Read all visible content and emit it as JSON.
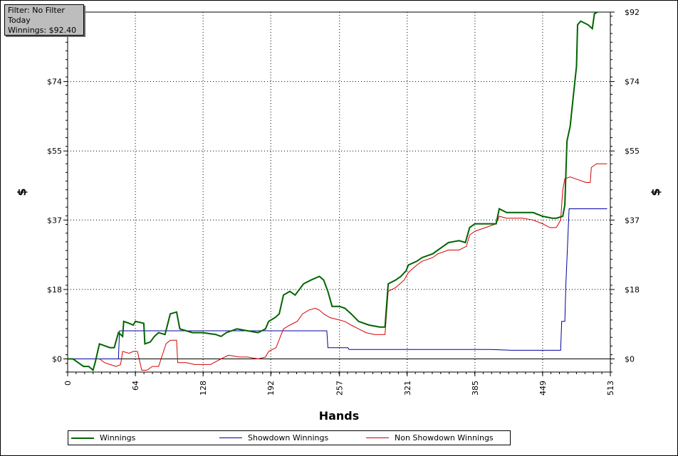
{
  "info_box": {
    "filter": "Filter: No Filter",
    "period": "Today",
    "winnings": "Winnings: $92.40"
  },
  "legend": [
    {
      "label": "Winnings",
      "color": "#006400"
    },
    {
      "label": "Showdown Winnings",
      "color": "#0000a0"
    },
    {
      "label": "Non Showdown Winnings",
      "color": "#d40000"
    }
  ],
  "chart_data": {
    "type": "line",
    "xlabel": "Hands",
    "ylabel": "$",
    "xlim": [
      0,
      513
    ],
    "ylim": [
      -3.5,
      92.4
    ],
    "x_ticks": [
      "0",
      "64",
      "128",
      "192",
      "257",
      "321",
      "385",
      "449",
      "513"
    ],
    "y_ticks": [
      "$0",
      "$18",
      "$37",
      "$55",
      "$74",
      "$92"
    ],
    "y_tick_values": [
      0,
      18.5,
      37,
      55.4,
      73.9,
      92.4
    ],
    "grid": "dotted",
    "series": [
      {
        "name": "Winnings",
        "color": "#006400",
        "points": [
          [
            0,
            0
          ],
          [
            5,
            0
          ],
          [
            10,
            -1
          ],
          [
            15,
            -2
          ],
          [
            20,
            -2
          ],
          [
            24,
            -3
          ],
          [
            26,
            -1
          ],
          [
            30,
            4
          ],
          [
            35,
            3.5
          ],
          [
            40,
            3
          ],
          [
            44,
            3
          ],
          [
            48,
            7
          ],
          [
            52,
            6
          ],
          [
            53,
            10
          ],
          [
            58,
            9.5
          ],
          [
            62,
            9
          ],
          [
            64,
            10
          ],
          [
            72,
            9.5
          ],
          [
            73,
            4
          ],
          [
            78,
            4.5
          ],
          [
            82,
            6
          ],
          [
            86,
            7
          ],
          [
            92,
            6.5
          ],
          [
            97,
            12
          ],
          [
            103,
            12.5
          ],
          [
            106,
            8
          ],
          [
            112,
            7.5
          ],
          [
            118,
            7
          ],
          [
            124,
            7
          ],
          [
            128,
            7
          ],
          [
            140,
            6.5
          ],
          [
            145,
            6
          ],
          [
            150,
            7
          ],
          [
            160,
            8
          ],
          [
            170,
            7.5
          ],
          [
            180,
            7
          ],
          [
            187,
            8
          ],
          [
            190,
            10
          ],
          [
            196,
            11
          ],
          [
            200,
            12
          ],
          [
            204,
            17
          ],
          [
            210,
            18
          ],
          [
            215,
            17
          ],
          [
            223,
            20
          ],
          [
            230,
            21
          ],
          [
            238,
            22
          ],
          [
            242,
            21
          ],
          [
            246,
            18
          ],
          [
            250,
            14
          ],
          [
            257,
            14
          ],
          [
            262,
            13.5
          ],
          [
            268,
            12
          ],
          [
            275,
            10
          ],
          [
            285,
            9
          ],
          [
            295,
            8.5
          ],
          [
            300,
            8.5
          ],
          [
            303,
            20
          ],
          [
            310,
            21
          ],
          [
            315,
            22
          ],
          [
            320,
            23.5
          ],
          [
            322,
            25
          ],
          [
            330,
            26
          ],
          [
            335,
            27
          ],
          [
            345,
            28
          ],
          [
            350,
            29
          ],
          [
            355,
            30
          ],
          [
            360,
            31
          ],
          [
            370,
            31.5
          ],
          [
            376,
            31
          ],
          [
            380,
            35
          ],
          [
            385,
            36
          ],
          [
            395,
            36
          ],
          [
            405,
            36
          ],
          [
            408,
            40
          ],
          [
            415,
            39
          ],
          [
            430,
            39
          ],
          [
            440,
            39
          ],
          [
            449,
            38
          ],
          [
            458,
            37.5
          ],
          [
            462,
            37.5
          ],
          [
            468,
            38
          ],
          [
            470,
            41
          ],
          [
            472,
            58
          ],
          [
            475,
            62
          ],
          [
            478,
            70
          ],
          [
            481,
            78
          ],
          [
            482,
            89
          ],
          [
            485,
            90
          ],
          [
            492,
            89
          ],
          [
            496,
            88
          ],
          [
            498,
            92
          ],
          [
            501,
            92.4
          ]
        ]
      },
      {
        "name": "Showdown Winnings",
        "color": "#0000a0",
        "points": [
          [
            0,
            0
          ],
          [
            20,
            0
          ],
          [
            30,
            0
          ],
          [
            48,
            0
          ],
          [
            49,
            7.5
          ],
          [
            100,
            7.5
          ],
          [
            150,
            7.5
          ],
          [
            200,
            7.5
          ],
          [
            245,
            7.5
          ],
          [
            246,
            3
          ],
          [
            265,
            3
          ],
          [
            266,
            2.5
          ],
          [
            300,
            2.5
          ],
          [
            350,
            2.5
          ],
          [
            400,
            2.5
          ],
          [
            420,
            2.3
          ],
          [
            440,
            2.3
          ],
          [
            466,
            2.3
          ],
          [
            467,
            10
          ],
          [
            470,
            10
          ],
          [
            471,
            20
          ],
          [
            474,
            40
          ],
          [
            510,
            40
          ]
        ]
      },
      {
        "name": "Non Showdown Winnings",
        "color": "#d40000",
        "points": [
          [
            30,
            0
          ],
          [
            35,
            -1
          ],
          [
            40,
            -1.5
          ],
          [
            46,
            -2
          ],
          [
            50,
            -1.5
          ],
          [
            52,
            2
          ],
          [
            58,
            1.5
          ],
          [
            62,
            2
          ],
          [
            66,
            2
          ],
          [
            70,
            -3
          ],
          [
            75,
            -3
          ],
          [
            80,
            -2
          ],
          [
            86,
            -2
          ],
          [
            93,
            4
          ],
          [
            97,
            5
          ],
          [
            103,
            5
          ],
          [
            104,
            -1
          ],
          [
            112,
            -1
          ],
          [
            120,
            -1.5
          ],
          [
            128,
            -1.5
          ],
          [
            135,
            -1.5
          ],
          [
            145,
            0
          ],
          [
            152,
            1
          ],
          [
            162,
            0.5
          ],
          [
            170,
            0.5
          ],
          [
            180,
            0
          ],
          [
            187,
            0.5
          ],
          [
            190,
            2
          ],
          [
            197,
            3
          ],
          [
            204,
            8
          ],
          [
            210,
            9
          ],
          [
            217,
            10
          ],
          [
            222,
            12
          ],
          [
            228,
            13
          ],
          [
            234,
            13.5
          ],
          [
            238,
            13
          ],
          [
            242,
            12
          ],
          [
            248,
            11
          ],
          [
            255,
            10.5
          ],
          [
            262,
            10
          ],
          [
            268,
            9
          ],
          [
            275,
            8
          ],
          [
            282,
            7
          ],
          [
            290,
            6.5
          ],
          [
            300,
            6.5
          ],
          [
            303,
            18
          ],
          [
            310,
            19
          ],
          [
            318,
            21
          ],
          [
            322,
            23
          ],
          [
            330,
            25
          ],
          [
            335,
            26
          ],
          [
            345,
            27
          ],
          [
            350,
            28
          ],
          [
            360,
            29
          ],
          [
            370,
            29
          ],
          [
            377,
            30
          ],
          [
            380,
            33
          ],
          [
            385,
            34
          ],
          [
            395,
            35
          ],
          [
            405,
            36
          ],
          [
            408,
            38
          ],
          [
            415,
            37.5
          ],
          [
            430,
            37.5
          ],
          [
            440,
            37
          ],
          [
            449,
            36
          ],
          [
            456,
            35
          ],
          [
            462,
            35
          ],
          [
            466,
            37
          ],
          [
            468,
            45
          ],
          [
            470,
            48
          ],
          [
            475,
            48.5
          ],
          [
            480,
            48
          ],
          [
            490,
            47
          ],
          [
            494,
            47
          ],
          [
            495,
            51
          ],
          [
            500,
            52
          ],
          [
            510,
            52
          ]
        ]
      }
    ]
  }
}
